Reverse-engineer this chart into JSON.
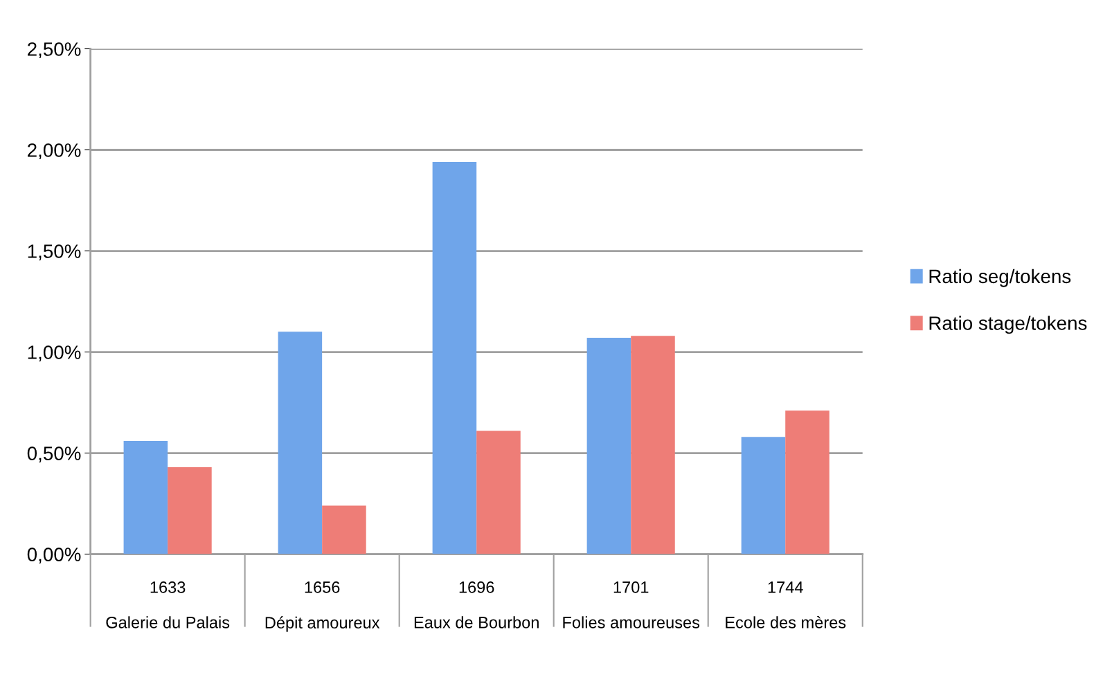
{
  "chart_data": {
    "type": "bar",
    "categories": [
      "1633\n\nGalerie du Palais",
      "1656\n\nDépit amoureux",
      "1696\n\nEaux de Bourbon",
      "1701\n\nFolies amoureuses",
      "1744\n\nEcole des mères"
    ],
    "series": [
      {
        "name": "Ratio seg/tokens",
        "color": "#6fa5ea",
        "values": [
          0.56,
          1.1,
          1.94,
          1.07,
          0.58
        ]
      },
      {
        "name": "Ratio stage/tokens",
        "color": "#ee7d77",
        "values": [
          0.43,
          0.24,
          0.61,
          1.08,
          0.71
        ]
      }
    ],
    "ylim": [
      0,
      2.5
    ],
    "yticks": [
      {
        "value": 0,
        "label": "0,00%"
      },
      {
        "value": 0.5,
        "label": "0,50%"
      },
      {
        "value": 1.0,
        "label": "1,00%"
      },
      {
        "value": 1.5,
        "label": "1,50%"
      },
      {
        "value": 2.0,
        "label": "2,00%"
      },
      {
        "value": 2.5,
        "label": "2,50%"
      }
    ],
    "grid": "y",
    "legend": "right"
  }
}
